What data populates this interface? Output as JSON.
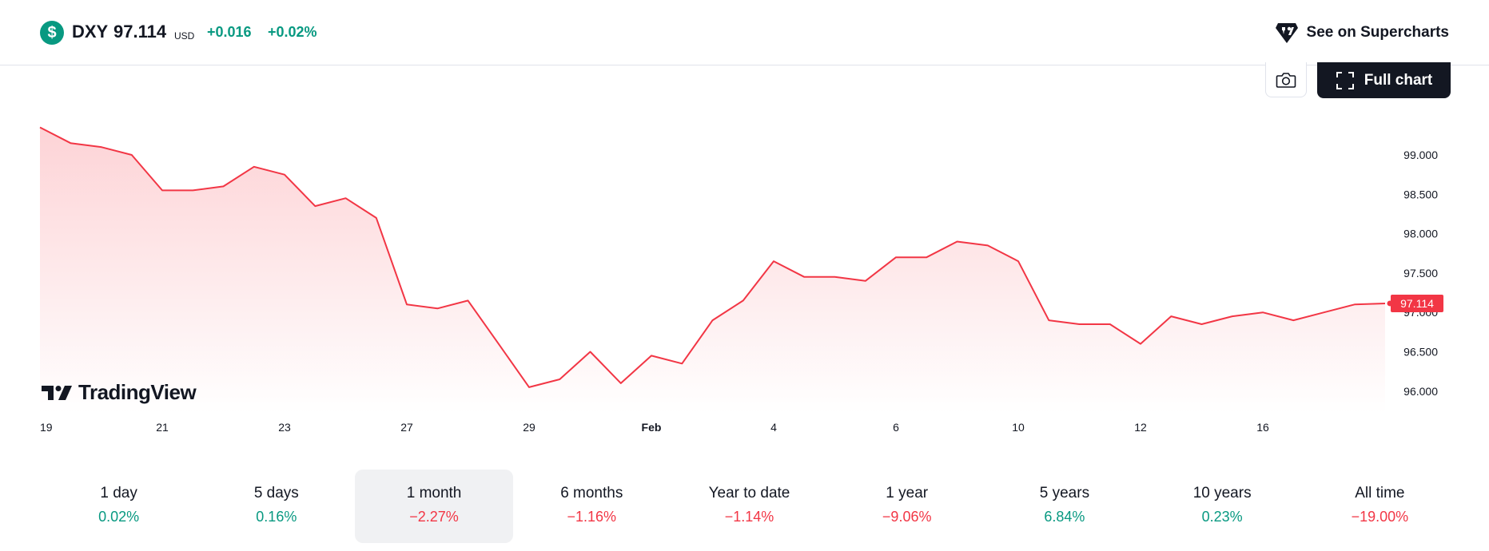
{
  "header": {
    "symbol_icon": "$",
    "symbol": "DXY",
    "price": "97.114",
    "currency": "USD",
    "change": "+0.016",
    "change_percent": "+0.02%",
    "supercharts_label": "See on Supercharts"
  },
  "toolbar": {
    "snapshot_icon": "camera-icon",
    "full_chart_label": "Full chart"
  },
  "branding": {
    "logo_text": "TradingView"
  },
  "colors": {
    "line": "#f23645",
    "positive": "#089981",
    "negative": "#f23645",
    "fill_top": "#fdd3d6",
    "fill_bottom": "#ffffff"
  },
  "chart_data": {
    "type": "area",
    "last_value_label": "97.114",
    "ylim": [
      95.75,
      99.5
    ],
    "y_ticks": [
      "96.000",
      "96.500",
      "97.000",
      "97.500",
      "98.000",
      "98.500",
      "99.000"
    ],
    "x_ticks": [
      "19",
      "21",
      "23",
      "27",
      "29",
      "Feb",
      "4",
      "6",
      "10",
      "12",
      "16"
    ],
    "x": [
      "19",
      "",
      "20",
      "",
      "21",
      "",
      "22",
      "",
      "23",
      "",
      "26",
      "",
      "27",
      "",
      "28",
      "",
      "29",
      "",
      "30",
      "",
      "Feb",
      "",
      "3",
      "",
      "4",
      "",
      "5",
      "",
      "6",
      "",
      "9",
      "",
      "10",
      "",
      "11",
      "",
      "12",
      "",
      "13",
      "",
      "16",
      "",
      "17",
      "",
      "18"
    ],
    "values": [
      99.35,
      99.15,
      99.1,
      99.0,
      98.55,
      98.55,
      98.6,
      98.85,
      98.75,
      98.35,
      98.45,
      98.2,
      97.1,
      97.05,
      97.15,
      96.6,
      96.05,
      96.15,
      96.5,
      96.1,
      96.45,
      96.35,
      96.9,
      97.15,
      97.65,
      97.45,
      97.45,
      97.4,
      97.7,
      97.7,
      97.9,
      97.85,
      97.65,
      96.9,
      96.85,
      96.85,
      96.6,
      96.95,
      96.85,
      96.95,
      97.0,
      96.9,
      97.0,
      97.1,
      97.114
    ],
    "series": [
      {
        "name": "DXY",
        "values_ref": "values"
      }
    ]
  },
  "periods": [
    {
      "label": "1 day",
      "value": "0.02%",
      "sign": "pos"
    },
    {
      "label": "5 days",
      "value": "0.16%",
      "sign": "pos"
    },
    {
      "label": "1 month",
      "value": "−2.27%",
      "sign": "neg"
    },
    {
      "label": "6 months",
      "value": "−1.16%",
      "sign": "neg"
    },
    {
      "label": "Year to date",
      "value": "−1.14%",
      "sign": "neg"
    },
    {
      "label": "1 year",
      "value": "−9.06%",
      "sign": "neg"
    },
    {
      "label": "5 years",
      "value": "6.84%",
      "sign": "pos"
    },
    {
      "label": "10 years",
      "value": "0.23%",
      "sign": "pos"
    },
    {
      "label": "All time",
      "value": "−19.00%",
      "sign": "neg"
    }
  ],
  "active_period_index": 2
}
